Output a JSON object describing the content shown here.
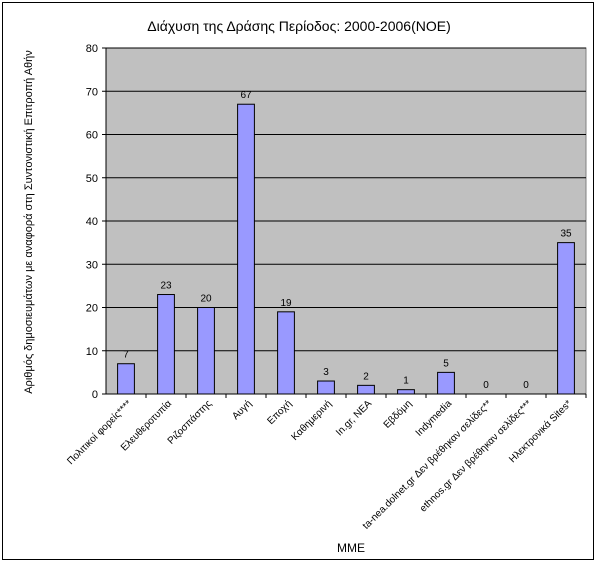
{
  "chart_data": {
    "type": "bar",
    "title": "Διάχυση της Δράσης Περίοδος: 2000-2006(ΝΟΕ)",
    "xlabel": "ΜΜΕ",
    "ylabel": "Αριθμός δημοσιευμάτων με αναφορά στη Συντονιστική Επιτροπή Αθήν",
    "categories": [
      "Πολιτικοί φορείς****",
      "Ελευθεροτυπία",
      "Ριζοσπάστης",
      "Αυγή",
      "Εποχή",
      "Καθημερινή",
      "In.gr, ΝΕΑ",
      "Εβδόμη",
      "Indymedia",
      "ta-nea.dolnet.gr Δεν βρέθηκαν σελίδες**",
      "ethnos.gr Δεν βρέθηκαν σελίδες***",
      "Ηλεκτρονικά Sites*"
    ],
    "values": [
      7,
      23,
      20,
      67,
      19,
      3,
      2,
      1,
      5,
      0,
      0,
      35
    ],
    "ylim": [
      0,
      80
    ],
    "yticks": [
      0,
      10,
      20,
      30,
      40,
      50,
      60,
      70,
      80
    ],
    "grid": true,
    "legend": "none",
    "colors": {
      "bar_fill": "#9999ff",
      "bar_stroke": "#000000",
      "plot_background": "#c0c0c0",
      "gridline": "#000000"
    }
  }
}
